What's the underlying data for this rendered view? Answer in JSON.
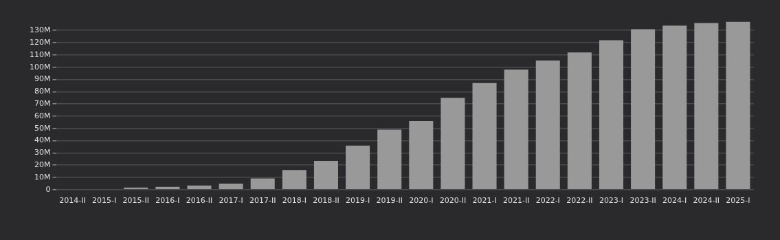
{
  "chart_data": {
    "type": "bar",
    "categories": [
      "2014-II",
      "2015-I",
      "2015-II",
      "2016-I",
      "2016-II",
      "2017-I",
      "2017-II",
      "2018-I",
      "2018-II",
      "2019-I",
      "2019-II",
      "2020-I",
      "2020-II",
      "2021-I",
      "2021-II",
      "2022-I",
      "2022-II",
      "2023-I",
      "2023-II",
      "2024-I",
      "2024-II",
      "2025-I"
    ],
    "values": [
      null,
      null,
      1.7,
      2.3,
      3.4,
      5,
      9.1,
      16,
      23.4,
      36,
      49,
      56,
      75,
      87,
      98,
      105.5,
      112,
      122,
      131,
      134,
      136,
      137
    ],
    "color": "#999999",
    "ylim": [
      0,
      138
    ],
    "yticks": [
      0,
      {
        "value": 10,
        "label": "10M"
      },
      {
        "value": 20,
        "label": "20M"
      },
      {
        "value": 30,
        "label": "30M"
      },
      {
        "value": 40,
        "label": "40M"
      },
      {
        "value": 50,
        "label": "50M"
      },
      {
        "value": 60,
        "label": "60M"
      },
      {
        "value": 70,
        "label": "70M"
      },
      {
        "value": 80,
        "label": "80M"
      },
      {
        "value": 90,
        "label": "90M"
      },
      {
        "value": 100,
        "label": "100M"
      },
      {
        "value": 110,
        "label": "110M"
      },
      {
        "value": 120,
        "label": "120M"
      },
      {
        "value": 130,
        "label": "130M"
      }
    ],
    "grid": "y"
  }
}
